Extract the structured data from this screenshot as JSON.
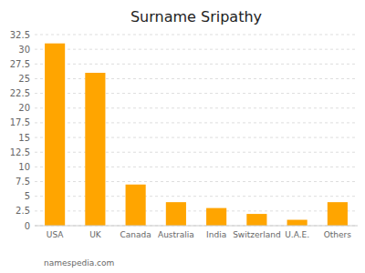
{
  "chart_data": {
    "type": "bar",
    "title": "Surname Sripathy",
    "categories": [
      "USA",
      "UK",
      "Canada",
      "Australia",
      "India",
      "Switzerland",
      "U.A.E.",
      "Others"
    ],
    "values": [
      31.0,
      26.0,
      7.0,
      4.0,
      3.0,
      2.0,
      1.0,
      4.0
    ],
    "color": "#FFA500",
    "ylim": [
      0,
      32.5
    ],
    "yticks": [
      0,
      2.5,
      5,
      7.5,
      10,
      12.5,
      15,
      17.5,
      20,
      22.5,
      25,
      27.5,
      30,
      32.5
    ],
    "grid": true,
    "annotations": [
      "namespedia.com"
    ]
  }
}
